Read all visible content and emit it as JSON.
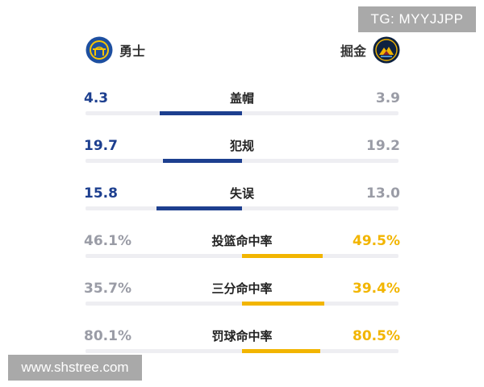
{
  "watermarks": {
    "top": "TG: MYYJJPP",
    "bottom": "www.shstree.com"
  },
  "teams": {
    "left": {
      "name": "勇士",
      "logo_icon": "warriors-logo-icon",
      "color": "#1d3f8f"
    },
    "right": {
      "name": "掘金",
      "logo_icon": "nuggets-logo-icon",
      "color": "#f2b500"
    }
  },
  "stats": [
    {
      "label": "盖帽",
      "left": "4.3",
      "right": "3.9",
      "left_value": 4.3,
      "right_value": 3.9,
      "leader": "left"
    },
    {
      "label": "犯规",
      "left": "19.7",
      "right": "19.2",
      "left_value": 19.7,
      "right_value": 19.2,
      "leader": "left"
    },
    {
      "label": "失误",
      "left": "15.8",
      "right": "13.0",
      "left_value": 15.8,
      "right_value": 13.0,
      "leader": "left"
    },
    {
      "label": "投篮命中率",
      "left": "46.1%",
      "right": "49.5%",
      "left_value": 46.1,
      "right_value": 49.5,
      "leader": "right"
    },
    {
      "label": "三分命中率",
      "left": "35.7%",
      "right": "39.4%",
      "left_value": 35.7,
      "right_value": 39.4,
      "leader": "right"
    },
    {
      "label": "罚球命中率",
      "left": "80.1%",
      "right": "80.5%",
      "left_value": 80.1,
      "right_value": 80.5,
      "leader": "right"
    }
  ],
  "colors": {
    "leader_left": "#1d3f8f",
    "leader_right": "#f2b500",
    "trailing": "#9a9ca6",
    "track": "#eeeef2"
  }
}
